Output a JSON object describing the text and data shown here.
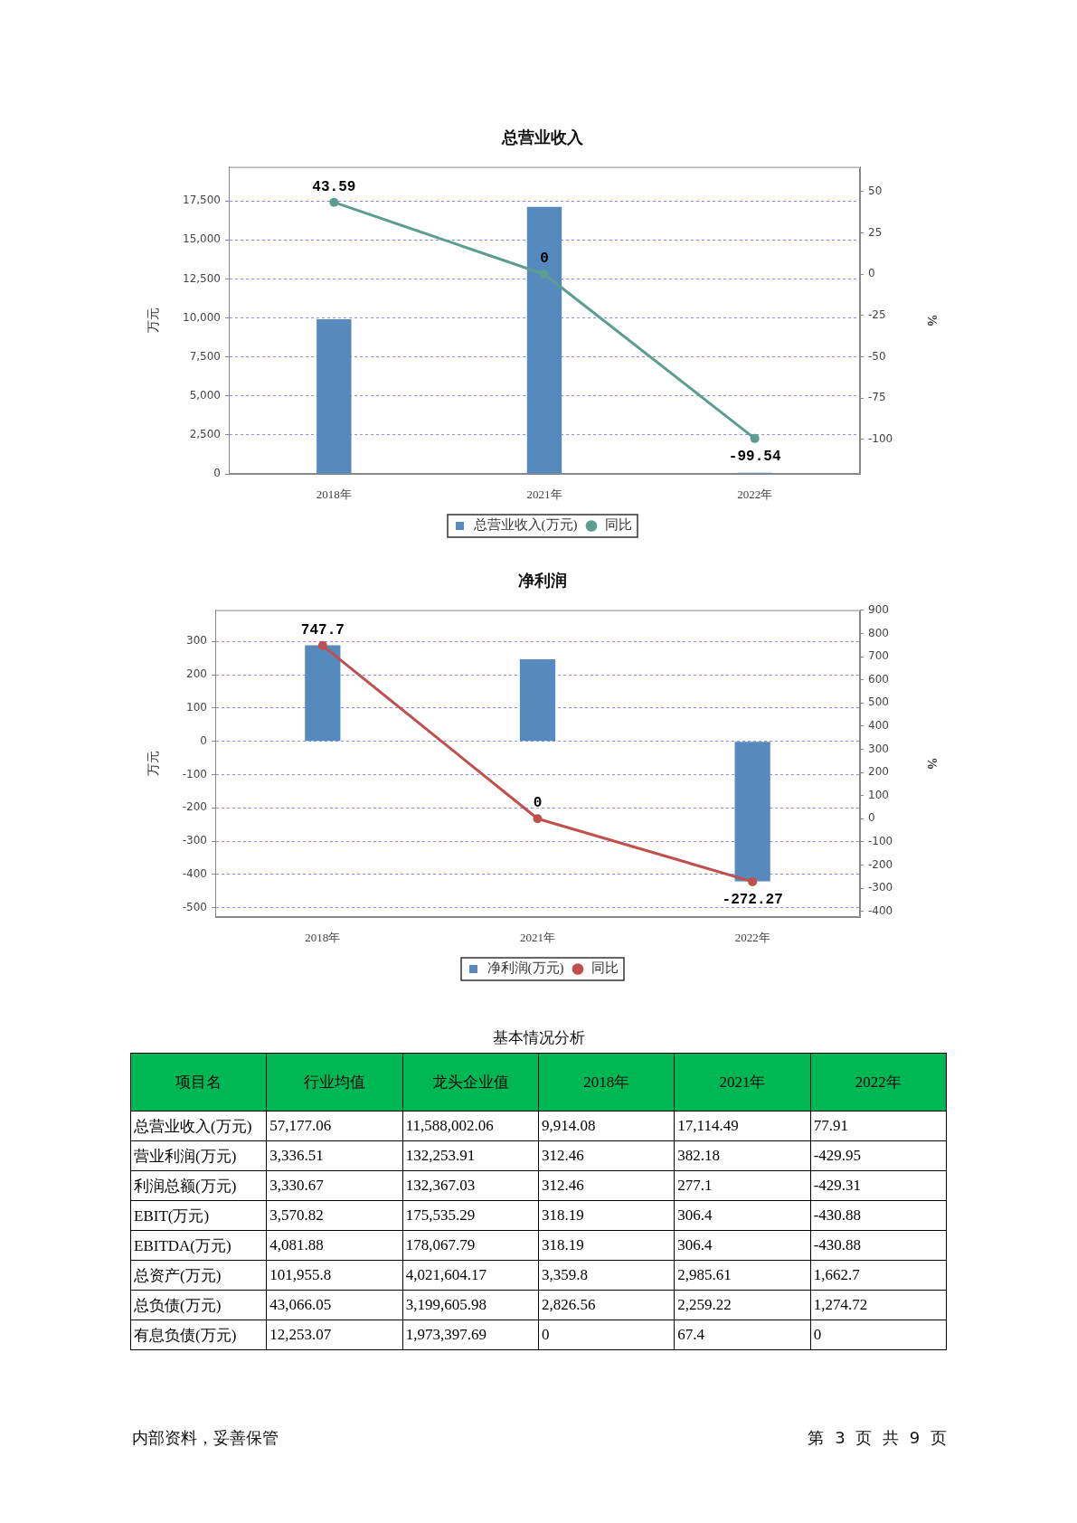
{
  "chart_data": [
    {
      "type": "bar",
      "title": "总营业收入",
      "categories": [
        "2018年",
        "2021年",
        "2022年"
      ],
      "ylabel": "万元",
      "y2label": "%",
      "series": [
        {
          "name": "总营业收入(万元)",
          "type": "bar",
          "color": "#5689bd",
          "values": [
            9914.08,
            17114.49,
            77.91
          ]
        },
        {
          "name": "同比",
          "type": "line",
          "axis": "y2",
          "color": "#5b9e8f",
          "values": [
            43.59,
            0,
            -99.54
          ],
          "value_labels": [
            "43.59",
            "0",
            "-99.54"
          ]
        }
      ],
      "ylim": [
        0,
        19680
      ],
      "yticks": [
        0,
        {
          "value": 2500,
          "label": "2,500"
        },
        {
          "value": 5000,
          "label": "5,000"
        },
        {
          "value": 7500,
          "label": "7,500"
        },
        {
          "value": 10000,
          "label": "10,000"
        },
        {
          "value": 12500,
          "label": "12,500"
        },
        {
          "value": 15000,
          "label": "15,000"
        },
        {
          "value": 17500,
          "label": "17,500"
        }
      ],
      "y2lim": [
        -121,
        65
      ],
      "y2ticks": [
        -100,
        -75,
        -50,
        -25,
        0,
        25,
        50
      ],
      "grid": "y",
      "legend": "bottom",
      "marker": "circle"
    },
    {
      "type": "bar",
      "title": "净利润",
      "categories": [
        "2018年",
        "2021年",
        "2022年"
      ],
      "ylabel": "万元",
      "y2label": "%",
      "series": [
        {
          "name": "净利润(万元)",
          "type": "bar",
          "color": "#5689bd",
          "values": [
            288,
            246,
            -421
          ]
        },
        {
          "name": "同比",
          "type": "line",
          "axis": "y2",
          "color": "#c0504d",
          "values": [
            747.7,
            0,
            -272.27
          ],
          "value_labels": [
            "747.7",
            "0",
            "-272.27"
          ]
        }
      ],
      "ylim": [
        -528,
        394
      ],
      "yticks": [
        -500,
        -400,
        -300,
        -200,
        -100,
        0,
        100,
        200,
        300
      ],
      "y2lim": [
        -425,
        901
      ],
      "y2ticks": [
        -400,
        -300,
        -200,
        -100,
        0,
        100,
        200,
        300,
        400,
        500,
        600,
        700,
        800,
        900
      ],
      "grid": "y",
      "legend": "bottom",
      "marker": "circle"
    },
    {
      "type": "other",
      "title": "基本情况分析",
      "ylabel": "项目名",
      "categories": [
        "行业均值",
        "龙头企业值",
        "2018年",
        "2021年",
        "2022年"
      ],
      "y_categories": [
        "总营业收入(万元)",
        "营业利润(万元)",
        "利润总额(万元)",
        "EBIT(万元)",
        "EBITDA(万元)",
        "总资产(万元)",
        "总负债(万元)",
        "有息负债(万元)"
      ],
      "cell_labels": [
        [
          "57,177.06",
          "11,588,002.06",
          "9,914.08",
          "17,114.49",
          "77.91"
        ],
        [
          "3,336.51",
          "132,253.91",
          "312.46",
          "382.18",
          "-429.95"
        ],
        [
          "3,330.67",
          "132,367.03",
          "312.46",
          "277.1",
          "-429.31"
        ],
        [
          "3,570.82",
          "175,535.29",
          "318.19",
          "306.4",
          "-430.88"
        ],
        [
          "4,081.88",
          "178,067.79",
          "318.19",
          "306.4",
          "-430.88"
        ],
        [
          "101,955.8",
          "4,021,604.17",
          "3,359.8",
          "2,985.61",
          "1,662.7"
        ],
        [
          "43,066.05",
          "3,199,605.98",
          "2,826.56",
          "2,259.22",
          "1,274.72"
        ],
        [
          "12,253.07",
          "1,973,397.69",
          "0",
          "67.4",
          "0"
        ]
      ],
      "annotations": [
        "内部资料，妥善保管",
        "第 3 页 共 9 页"
      ]
    }
  ]
}
